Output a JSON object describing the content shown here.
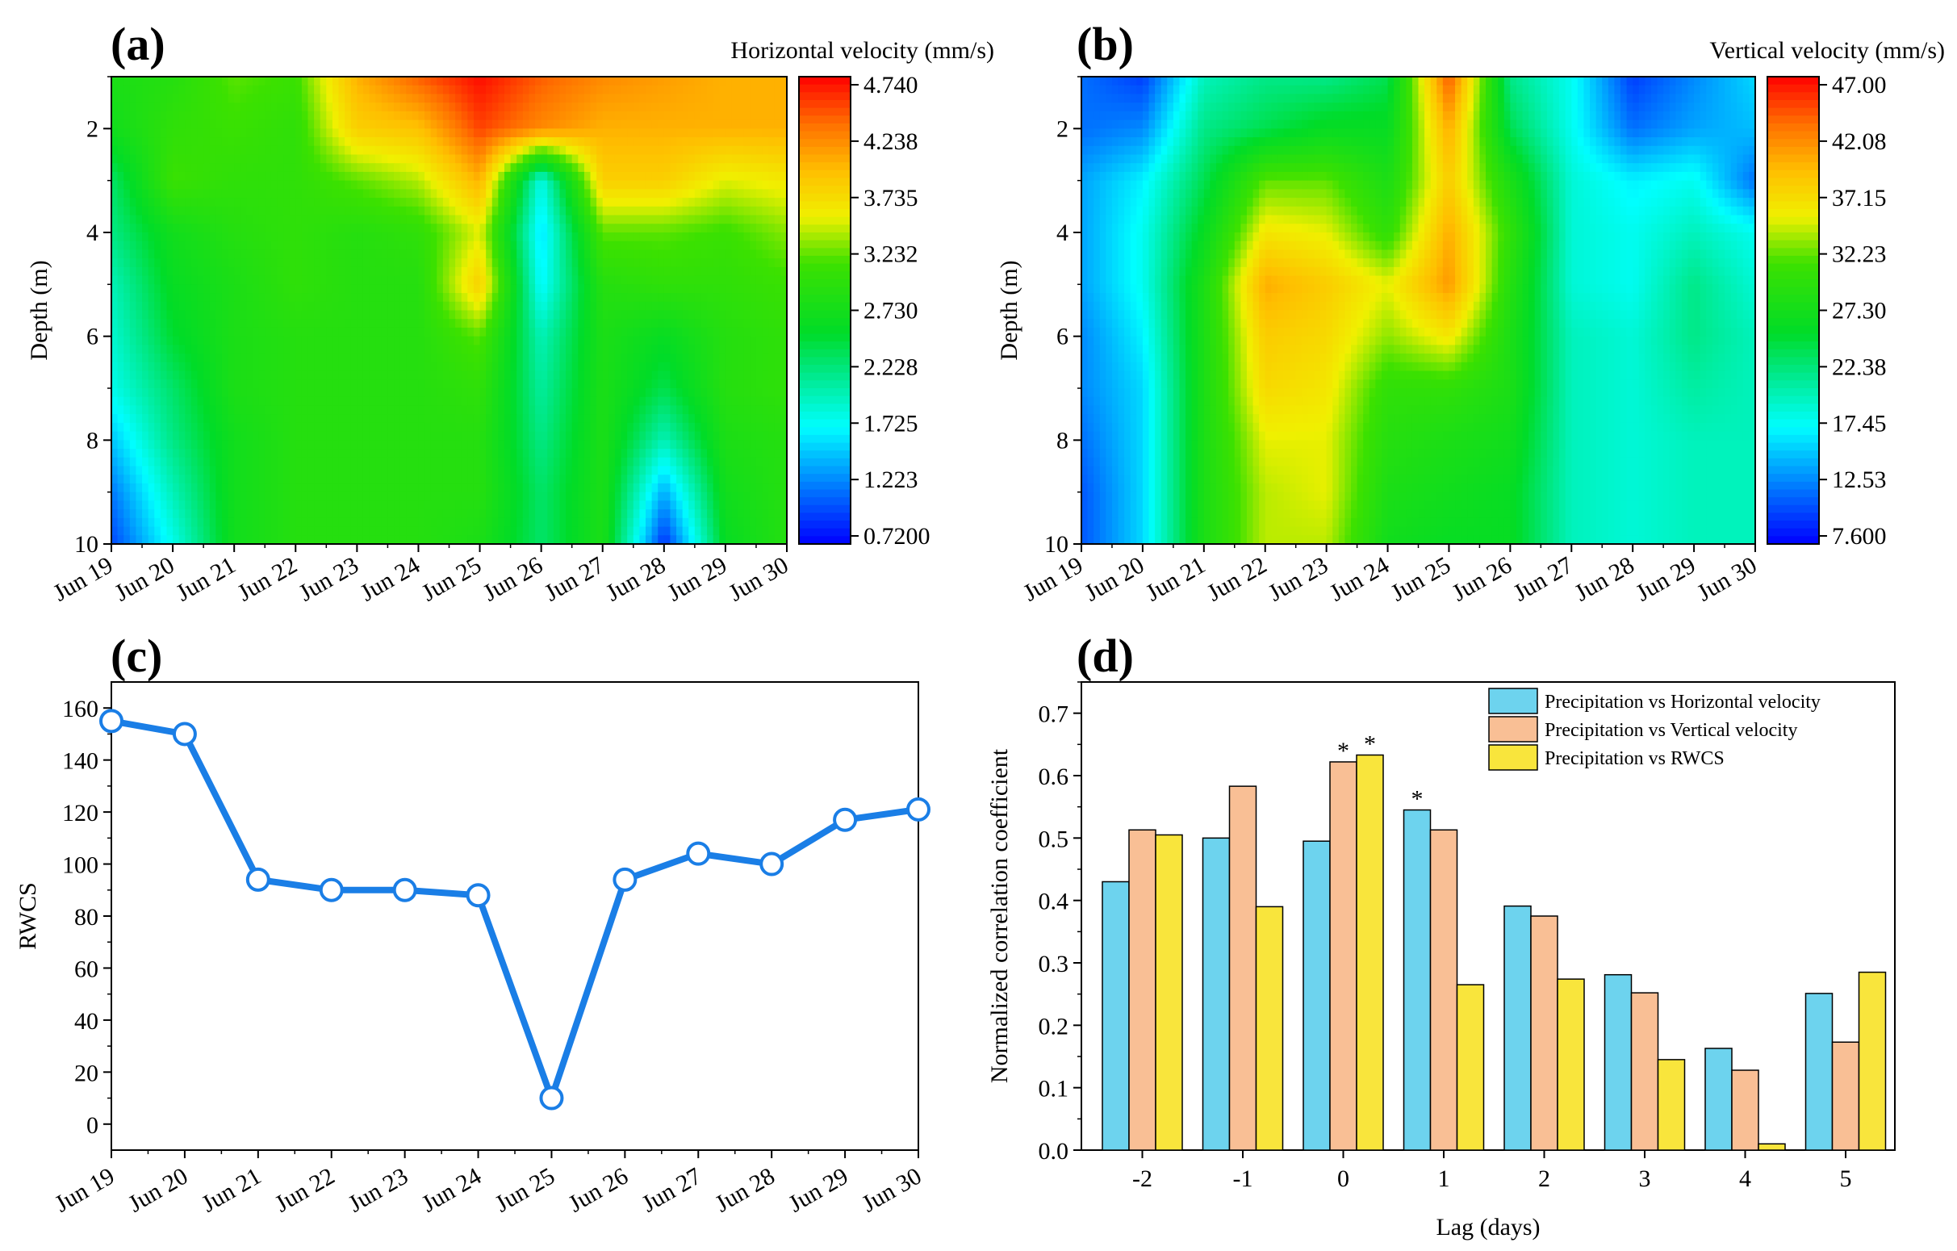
{
  "chart_data": [
    {
      "panel": "(a)",
      "type": "heatmap",
      "title": "Horizontal velocity (mm/s)",
      "ylabel": "Depth (m)",
      "x": [
        "Jun 19",
        "Jun 20",
        "Jun 21",
        "Jun 22",
        "Jun 23",
        "Jun 24",
        "Jun 25",
        "Jun 26",
        "Jun 27",
        "Jun 28",
        "Jun 29",
        "Jun 30"
      ],
      "y": [
        1,
        2,
        3,
        4,
        5,
        6,
        7,
        8,
        9,
        10
      ],
      "yticks": [
        2,
        4,
        6,
        8,
        10
      ],
      "ylim": [
        1,
        10
      ],
      "colorbar_ticks": [
        "4.740",
        "4.238",
        "3.735",
        "3.232",
        "2.730",
        "2.228",
        "1.725",
        "1.223",
        "0.7200"
      ],
      "zlim": [
        0.72,
        4.74
      ],
      "values": [
        [
          2.8,
          2.9,
          3.2,
          3.1,
          4.0,
          4.4,
          4.7,
          4.4,
          4.2,
          4.1,
          4.0,
          4.0
        ],
        [
          2.7,
          3.0,
          3.1,
          3.0,
          3.8,
          3.9,
          4.5,
          4.2,
          4.0,
          4.0,
          4.0,
          4.0
        ],
        [
          2.3,
          3.1,
          3.0,
          3.0,
          3.2,
          3.4,
          4.0,
          1.8,
          3.8,
          3.8,
          3.5,
          3.6
        ],
        [
          2.2,
          2.7,
          2.9,
          3.0,
          2.9,
          3.0,
          3.5,
          1.6,
          3.2,
          3.2,
          3.1,
          3.3
        ],
        [
          2.0,
          2.6,
          2.8,
          3.0,
          2.9,
          2.9,
          3.8,
          1.7,
          2.9,
          3.0,
          3.0,
          3.1
        ],
        [
          1.9,
          2.5,
          2.8,
          2.9,
          2.9,
          2.9,
          3.2,
          2.0,
          2.8,
          2.6,
          2.9,
          3.0
        ],
        [
          1.8,
          2.3,
          2.8,
          2.9,
          2.9,
          2.9,
          3.0,
          2.1,
          2.8,
          2.4,
          2.9,
          3.0
        ],
        [
          1.5,
          2.2,
          2.7,
          2.9,
          2.9,
          2.9,
          2.9,
          2.2,
          2.8,
          2.0,
          2.8,
          2.9
        ],
        [
          1.2,
          2.0,
          2.7,
          2.9,
          2.9,
          2.9,
          2.9,
          2.3,
          2.8,
          1.4,
          2.7,
          2.9
        ],
        [
          1.0,
          1.8,
          2.7,
          2.9,
          2.9,
          2.9,
          2.8,
          2.3,
          2.8,
          0.9,
          2.6,
          2.9
        ]
      ]
    },
    {
      "panel": "(b)",
      "type": "heatmap",
      "title": "Vertical velocity (mm/s)",
      "ylabel": "Depth (m)",
      "x": [
        "Jun 19",
        "Jun 20",
        "Jun 21",
        "Jun 22",
        "Jun 23",
        "Jun 24",
        "Jun 25",
        "Jun 26",
        "Jun 27",
        "Jun 28",
        "Jun 29",
        "Jun 30"
      ],
      "y": [
        1,
        2,
        3,
        4,
        5,
        6,
        7,
        8,
        9,
        10
      ],
      "yticks": [
        2,
        4,
        6,
        8,
        10
      ],
      "ylim": [
        1,
        10
      ],
      "colorbar_ticks": [
        "47.00",
        "42.08",
        "37.15",
        "32.23",
        "27.30",
        "22.38",
        "17.45",
        "12.53",
        "7.600"
      ],
      "zlim": [
        7.6,
        47.0
      ],
      "values": [
        [
          12,
          10,
          20,
          22,
          22,
          24,
          44,
          22,
          18,
          10,
          13,
          16
        ],
        [
          12,
          13,
          22,
          24,
          26,
          26,
          40,
          24,
          18,
          12,
          14,
          15
        ],
        [
          14,
          17,
          24,
          32,
          32,
          28,
          38,
          28,
          19,
          17,
          18,
          12
        ],
        [
          14,
          18,
          26,
          36,
          35,
          30,
          40,
          30,
          19,
          18,
          20,
          18
        ],
        [
          14,
          18,
          28,
          40,
          38,
          35,
          41,
          29,
          19,
          18,
          22,
          19
        ],
        [
          13,
          17,
          28,
          38,
          37,
          33,
          36,
          28,
          20,
          19,
          22,
          20
        ],
        [
          13,
          16,
          28,
          37,
          36,
          30,
          30,
          28,
          20,
          19,
          21,
          20
        ],
        [
          12,
          16,
          28,
          35,
          35,
          29,
          28,
          27,
          20,
          19,
          20,
          20
        ],
        [
          11,
          16,
          28,
          34,
          35,
          28,
          27,
          26,
          20,
          19,
          20,
          20
        ],
        [
          11,
          16,
          28,
          34,
          34,
          27,
          26,
          26,
          20,
          19,
          20,
          20
        ]
      ]
    },
    {
      "panel": "(c)",
      "type": "line",
      "categories": [
        "Jun 19",
        "Jun 20",
        "Jun 21",
        "Jun 22",
        "Jun 23",
        "Jun 24",
        "Jun 25",
        "Jun 26",
        "Jun 27",
        "Jun 28",
        "Jun 29",
        "Jun 30"
      ],
      "values": [
        155,
        150,
        94,
        90,
        90,
        88,
        10,
        94,
        104,
        100,
        117,
        121
      ],
      "ylabel": "RWCS",
      "ylim": [
        -10,
        170
      ],
      "yticks": [
        0,
        20,
        40,
        60,
        80,
        100,
        120,
        140,
        160
      ],
      "color": "#1a7ee6"
    },
    {
      "panel": "(d)",
      "type": "bar",
      "categories": [
        "-2",
        "-1",
        "0",
        "1",
        "2",
        "3",
        "4",
        "5"
      ],
      "series": [
        {
          "name": "Precipitation vs Horizontal velocity",
          "values": [
            0.43,
            0.5,
            0.495,
            0.545,
            0.391,
            0.281,
            0.163,
            0.251
          ],
          "color": "#6dd3ee",
          "significant": [
            false,
            false,
            false,
            true,
            false,
            false,
            false,
            false
          ]
        },
        {
          "name": "Precipitation vs Vertical velocity",
          "values": [
            0.513,
            0.583,
            0.622,
            0.513,
            0.375,
            0.252,
            0.128,
            0.173
          ],
          "color": "#f9bf95",
          "significant": [
            false,
            false,
            true,
            false,
            false,
            false,
            false,
            false
          ]
        },
        {
          "name": "Precipitation vs RWCS",
          "values": [
            0.505,
            0.39,
            0.633,
            0.265,
            0.274,
            0.145,
            0.01,
            0.285
          ],
          "color": "#f9e53c",
          "significant": [
            false,
            false,
            true,
            false,
            false,
            false,
            false,
            false
          ]
        }
      ],
      "significance_marker": "*",
      "xlabel": "Lag (days)",
      "ylabel": "Normalized correlation coefficient",
      "ylim": [
        0,
        0.75
      ],
      "yticks": [
        "0.0",
        "0.1",
        "0.2",
        "0.3",
        "0.4",
        "0.5",
        "0.6",
        "0.7"
      ],
      "legend": "top-right"
    }
  ],
  "panel_labels": {
    "a": "(a)",
    "b": "(b)",
    "c": "(c)",
    "d": "(d)"
  }
}
